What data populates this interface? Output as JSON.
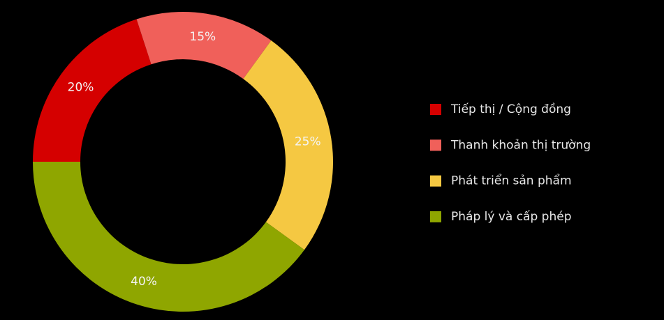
{
  "chart_data": {
    "type": "donut",
    "categories": [
      "Tiếp thị / Cộng đồng",
      "Thanh khoản thị trường",
      "Phát triển sản phẩm",
      "Pháp lý và cấp phép"
    ],
    "values": [
      20,
      15,
      25,
      40
    ],
    "value_labels": [
      "20%",
      "15%",
      "25%",
      "40%"
    ],
    "colors": [
      "#d50000",
      "#f0605a",
      "#f5c842",
      "#8fa600"
    ],
    "legend": "right"
  }
}
